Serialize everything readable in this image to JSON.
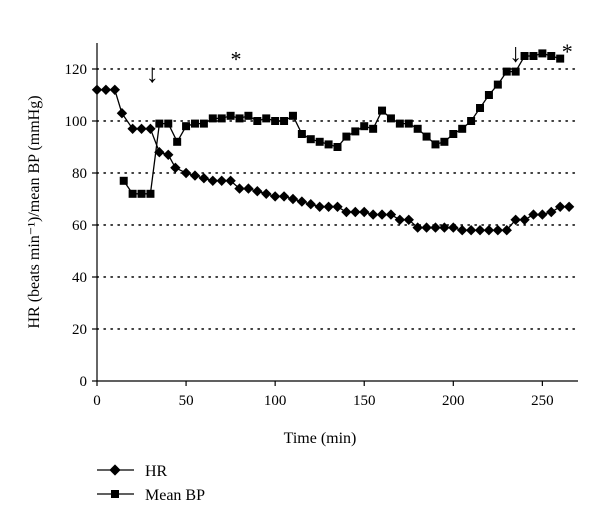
{
  "chart_data": {
    "type": "line",
    "xlabel": "Time (min)",
    "ylabel": "HR (beats min⁻¹)/mean BP (mmHg)",
    "xlim": [
      0,
      270
    ],
    "ylim": [
      0,
      130
    ],
    "x_ticks": [
      0,
      50,
      100,
      150,
      200,
      250
    ],
    "y_ticks": [
      0,
      20,
      40,
      60,
      80,
      100,
      120
    ],
    "grid": "horizontal dotted",
    "legend_position": "bottom-left",
    "series": [
      {
        "name": "HR",
        "marker": "diamond",
        "color": "#000000",
        "points": [
          [
            0,
            112
          ],
          [
            5,
            112
          ],
          [
            10,
            112
          ],
          [
            14,
            103
          ],
          [
            20,
            97
          ],
          [
            25,
            97
          ],
          [
            30,
            97
          ],
          [
            35,
            88
          ],
          [
            40,
            87
          ],
          [
            44,
            82
          ],
          [
            50,
            80
          ],
          [
            55,
            79
          ],
          [
            60,
            78
          ],
          [
            65,
            77
          ],
          [
            70,
            77
          ],
          [
            75,
            77
          ],
          [
            80,
            74
          ],
          [
            85,
            74
          ],
          [
            90,
            73
          ],
          [
            95,
            72
          ],
          [
            100,
            71
          ],
          [
            105,
            71
          ],
          [
            110,
            70
          ],
          [
            115,
            69
          ],
          [
            120,
            68
          ],
          [
            125,
            67
          ],
          [
            130,
            67
          ],
          [
            135,
            67
          ],
          [
            140,
            65
          ],
          [
            145,
            65
          ],
          [
            150,
            65
          ],
          [
            155,
            64
          ],
          [
            160,
            64
          ],
          [
            165,
            64
          ],
          [
            170,
            62
          ],
          [
            175,
            62
          ],
          [
            180,
            59
          ],
          [
            185,
            59
          ],
          [
            190,
            59
          ],
          [
            195,
            59
          ],
          [
            200,
            59
          ],
          [
            205,
            58
          ],
          [
            210,
            58
          ],
          [
            215,
            58
          ],
          [
            220,
            58
          ],
          [
            225,
            58
          ],
          [
            230,
            58
          ],
          [
            235,
            62
          ],
          [
            240,
            62
          ],
          [
            245,
            64
          ],
          [
            250,
            64
          ],
          [
            255,
            65
          ],
          [
            260,
            67
          ],
          [
            265,
            67
          ]
        ]
      },
      {
        "name": "Mean BP",
        "marker": "square",
        "color": "#000000",
        "points": [
          [
            15,
            77
          ],
          [
            20,
            72
          ],
          [
            25,
            72
          ],
          [
            30,
            72
          ],
          [
            35,
            99
          ],
          [
            40,
            99
          ],
          [
            45,
            92
          ],
          [
            50,
            98
          ],
          [
            55,
            99
          ],
          [
            60,
            99
          ],
          [
            65,
            101
          ],
          [
            70,
            101
          ],
          [
            75,
            102
          ],
          [
            80,
            101
          ],
          [
            85,
            102
          ],
          [
            90,
            100
          ],
          [
            95,
            101
          ],
          [
            100,
            100
          ],
          [
            105,
            100
          ],
          [
            110,
            102
          ],
          [
            115,
            95
          ],
          [
            120,
            93
          ],
          [
            125,
            92
          ],
          [
            130,
            91
          ],
          [
            135,
            90
          ],
          [
            140,
            94
          ],
          [
            145,
            96
          ],
          [
            150,
            98
          ],
          [
            155,
            97
          ],
          [
            160,
            104
          ],
          [
            165,
            101
          ],
          [
            170,
            99
          ],
          [
            175,
            99
          ],
          [
            180,
            97
          ],
          [
            185,
            94
          ],
          [
            190,
            91
          ],
          [
            195,
            92
          ],
          [
            200,
            95
          ],
          [
            205,
            97
          ],
          [
            210,
            100
          ],
          [
            215,
            105
          ],
          [
            220,
            110
          ],
          [
            225,
            114
          ],
          [
            230,
            119
          ],
          [
            235,
            119
          ],
          [
            240,
            125
          ],
          [
            245,
            125
          ],
          [
            250,
            126
          ],
          [
            255,
            125
          ],
          [
            260,
            124
          ]
        ]
      }
    ],
    "annotations": [
      {
        "text": "↓",
        "x": 31,
        "y": 118
      },
      {
        "text": "*",
        "x": 78,
        "y": 124
      },
      {
        "text": "↓",
        "x": 235,
        "y": 126
      },
      {
        "text": "*",
        "x": 264,
        "y": 127
      }
    ]
  }
}
